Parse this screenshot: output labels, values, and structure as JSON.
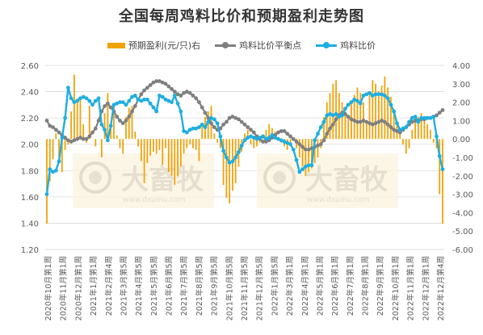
{
  "chart_data": {
    "type": "bar+line",
    "title": "全国每周鸡料比价和预期盈利走势图",
    "watermark": "大畜牧",
    "watermark_url": "www.dxumu.com",
    "y_left": {
      "ylim": [
        1.2,
        2.6
      ],
      "ticks": [
        "1.20",
        "1.40",
        "1.60",
        "1.80",
        "2.00",
        "2.20",
        "2.40",
        "2.60"
      ]
    },
    "y_right": {
      "ylim": [
        -6,
        4
      ],
      "ticks": [
        "4.00",
        "3.00",
        "2.00",
        "1.00",
        "0.00",
        "-1.00",
        "-2.00",
        "-3.00",
        "-4.00",
        "-5.00",
        "-6.00"
      ]
    },
    "x_tick_labels": [
      "2020年10月第1周",
      "2020年11月第1周",
      "2020年12月第1周",
      "2021年1月第1周",
      "2021年2月第4周",
      "2021年3月第5周",
      "2021年4月第5周",
      "2021年5月第5周",
      "2021年6月第5周",
      "2021年7月第5周",
      "2021年8月第5周",
      "2021年9月第5周",
      "2021年10月第5周",
      "2021年11月第5周",
      "2021年12月第5周",
      "2022年1月第5周",
      "2022年3月第1周",
      "2022年4月第1周",
      "2022年5月第1周",
      "2022年6月第1周",
      "2022年7月第1周",
      "2022年8月第1周",
      "2022年9月第1周",
      "2022年10月第1周",
      "2022年11月第1周",
      "2022年12月第1周",
      "2022年12月第4周"
    ],
    "colors": {
      "bar": "#f0a30a",
      "avg_line": "#7f7f7f",
      "ratio_line": "#1eaee0",
      "axis_text": "#595959",
      "grid": "#d9d9d9"
    },
    "series": [
      {
        "name": "预期盈利(元/只)右",
        "type": "bar",
        "axis": "right",
        "values": [
          -4.6,
          -2.3,
          -1.1,
          0.3,
          -1.0,
          -1.8,
          -0.6,
          -0.3,
          1.5,
          3.5,
          2.2,
          2.3,
          0.8,
          -0.2,
          1.8,
          0.0,
          -0.4,
          0.0,
          -1.0,
          1.4,
          2.5,
          0.8,
          1.8,
          0.2,
          -0.5,
          -0.8,
          1.2,
          1.7,
          1.8,
          0.4,
          -0.4,
          -1.2,
          -2.4,
          -1.3,
          -0.9,
          -0.7,
          -0.8,
          -0.6,
          -1.4,
          -0.5,
          -1.8,
          -2.0,
          -2.5,
          -2.0,
          -1.5,
          -0.8,
          -0.5,
          -0.3,
          -0.5,
          -0.6,
          -1.2,
          0.8,
          1.2,
          1.5,
          1.8,
          0.3,
          -0.2,
          -0.5,
          -2.5,
          -3.2,
          -3.5,
          -2.8,
          -2.4,
          -1.5,
          -0.7,
          0.3,
          0.5,
          -0.3,
          -0.5,
          -0.4,
          -0.2,
          0.2,
          0.5,
          0.8,
          0.6,
          0.4,
          0.0,
          -0.2,
          -0.4,
          -0.6,
          -0.2,
          0.0,
          -0.5,
          -1.0,
          -1.5,
          -2.0,
          -1.8,
          -1.6,
          -1.3,
          -1.0,
          -0.5,
          1.2,
          2.0,
          2.5,
          3.0,
          3.2,
          2.5,
          2.0,
          1.5,
          1.2,
          2.0,
          2.4,
          2.8,
          2.5,
          2.0,
          1.0,
          2.5,
          3.2,
          3.0,
          2.6,
          2.9,
          3.4,
          2.8,
          2.3,
          1.5,
          0.8,
          0.3,
          -0.3,
          -0.8,
          -0.5,
          0.5,
          1.0,
          1.2,
          1.4,
          1.0,
          0.8,
          0.5,
          -0.2,
          -0.5,
          -3.0,
          -4.6
        ]
      },
      {
        "name": "鸡料比价平衡点",
        "type": "line",
        "axis": "left",
        "values": [
          2.18,
          2.14,
          2.13,
          2.11,
          2.09,
          2.07,
          2.05,
          2.03,
          2.02,
          2.03,
          2.04,
          2.05,
          2.04,
          2.04,
          2.06,
          2.09,
          2.12,
          2.18,
          2.25,
          2.29,
          2.31,
          2.28,
          2.25,
          2.21,
          2.18,
          2.16,
          2.18,
          2.21,
          2.25,
          2.29,
          2.34,
          2.38,
          2.41,
          2.43,
          2.45,
          2.47,
          2.48,
          2.48,
          2.47,
          2.46,
          2.44,
          2.42,
          2.4,
          2.38,
          2.37,
          2.39,
          2.4,
          2.39,
          2.37,
          2.35,
          2.32,
          2.28,
          2.24,
          2.2,
          2.16,
          2.13,
          2.11,
          2.12,
          2.15,
          2.17,
          2.2,
          2.21,
          2.2,
          2.19,
          2.17,
          2.15,
          2.13,
          2.11,
          2.09,
          2.06,
          2.04,
          2.02,
          2.02,
          2.03,
          2.05,
          2.07,
          2.09,
          2.1,
          2.1,
          2.08,
          2.06,
          2.04,
          2.02,
          2.0,
          1.98,
          1.96,
          1.96,
          1.97,
          1.98,
          1.99,
          2.0,
          2.03,
          2.08,
          2.12,
          2.15,
          2.19,
          2.22,
          2.24,
          2.23,
          2.21,
          2.19,
          2.18,
          2.17,
          2.17,
          2.18,
          2.17,
          2.16,
          2.15,
          2.16,
          2.17,
          2.18,
          2.17,
          2.15,
          2.13,
          2.11,
          2.1,
          2.09,
          2.11,
          2.13,
          2.15,
          2.17,
          2.18,
          2.18,
          2.19,
          2.19,
          2.2,
          2.2,
          2.21,
          2.22,
          2.24,
          2.26
        ]
      },
      {
        "name": "鸡料比价",
        "type": "line",
        "axis": "left",
        "values": [
          1.62,
          1.81,
          1.79,
          1.8,
          1.87,
          2.05,
          2.2,
          2.43,
          2.35,
          2.32,
          2.33,
          2.35,
          2.36,
          2.35,
          2.33,
          2.3,
          2.33,
          2.35,
          2.15,
          2.11,
          2.03,
          2.14,
          2.3,
          2.31,
          2.32,
          2.32,
          2.3,
          2.33,
          2.36,
          2.37,
          2.34,
          2.33,
          2.34,
          2.34,
          2.31,
          2.28,
          2.25,
          2.37,
          2.36,
          2.34,
          2.33,
          2.32,
          2.37,
          2.31,
          2.25,
          2.1,
          2.09,
          2.11,
          2.12,
          2.12,
          2.13,
          2.15,
          2.13,
          2.17,
          2.2,
          2.19,
          2.16,
          2.06,
          1.95,
          1.9,
          1.86,
          1.87,
          1.9,
          1.94,
          1.99,
          2.03,
          2.05,
          2.06,
          2.05,
          2.04,
          2.05,
          2.06,
          2.04,
          2.05,
          2.07,
          2.05,
          2.04,
          2.03,
          2.02,
          2.01,
          2.0,
          1.96,
          1.88,
          1.79,
          1.81,
          1.83,
          1.84,
          1.84,
          2.03,
          2.08,
          2.13,
          2.17,
          2.22,
          2.23,
          2.22,
          2.23,
          2.21,
          2.22,
          2.27,
          2.3,
          2.32,
          2.34,
          2.33,
          2.31,
          2.37,
          2.38,
          2.39,
          2.37,
          2.38,
          2.38,
          2.38,
          2.37,
          2.35,
          2.3,
          2.25,
          2.16,
          2.11,
          2.12,
          2.13,
          2.17,
          2.2,
          2.21,
          2.17,
          2.2,
          2.2,
          2.2,
          2.2,
          2.21,
          2.06,
          1.91,
          1.81
        ]
      }
    ]
  }
}
